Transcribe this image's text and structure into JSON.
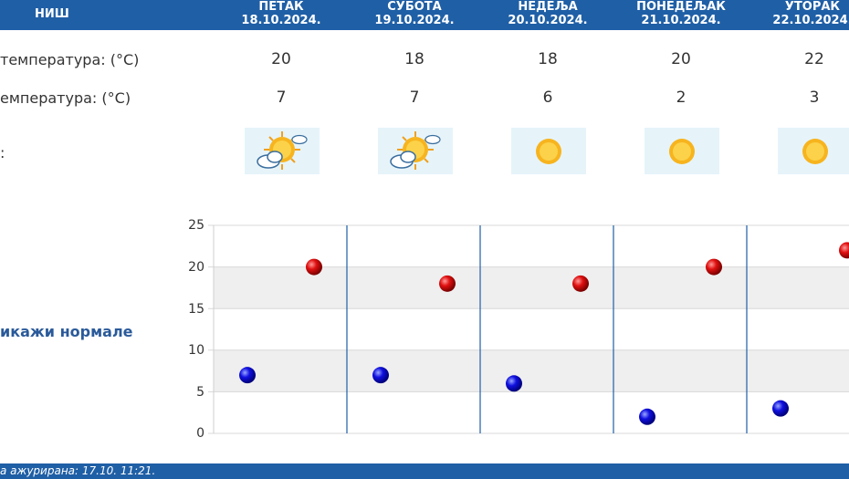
{
  "header": {
    "city": "НИШ",
    "days": [
      {
        "name": "ПЕТАК",
        "date": "18.10.2024."
      },
      {
        "name": "СУБОТА",
        "date": "19.10.2024."
      },
      {
        "name": "НЕДЕЉА",
        "date": "20.10.2024."
      },
      {
        "name": "ПОНЕДЕЉАК",
        "date": "21.10.2024."
      },
      {
        "name": "УТОРАК",
        "date": "22.10.2024."
      }
    ]
  },
  "rows": {
    "max_label": "температура: (°C)",
    "min_label": "емпература: (°C)",
    "icon_label": ":"
  },
  "max_temps": [
    "20",
    "18",
    "18",
    "20",
    "22"
  ],
  "min_temps": [
    "7",
    "7",
    "6",
    "2",
    "3"
  ],
  "weather_icons": [
    "sun-cloud-icon",
    "sun-cloud-icon",
    "sun-icon",
    "sun-icon",
    "sun-icon"
  ],
  "normals_link": "икажи нормале",
  "footer": "а ажурирана:  17.10.  11:21.",
  "colors": {
    "header_bg": "#1f5fa6",
    "max_marker": "#cc0000",
    "min_marker": "#0000cc",
    "icon_bg": "#e6f4fa",
    "divider": "#1f5fa6"
  },
  "chart_data": {
    "type": "scatter",
    "categories": [
      "18.10.2024.",
      "19.10.2024.",
      "20.10.2024.",
      "21.10.2024.",
      "22.10.2024."
    ],
    "series": [
      {
        "values": [
          20,
          18,
          18,
          20,
          22
        ],
        "color": "#cc0000"
      },
      {
        "values": [
          7,
          7,
          6,
          2,
          3
        ],
        "color": "#0000cc"
      }
    ],
    "y_ticks": [
      "25",
      "20",
      "15",
      "10",
      "5",
      "0"
    ],
    "ylim": [
      0,
      25
    ],
    "grid": true
  }
}
